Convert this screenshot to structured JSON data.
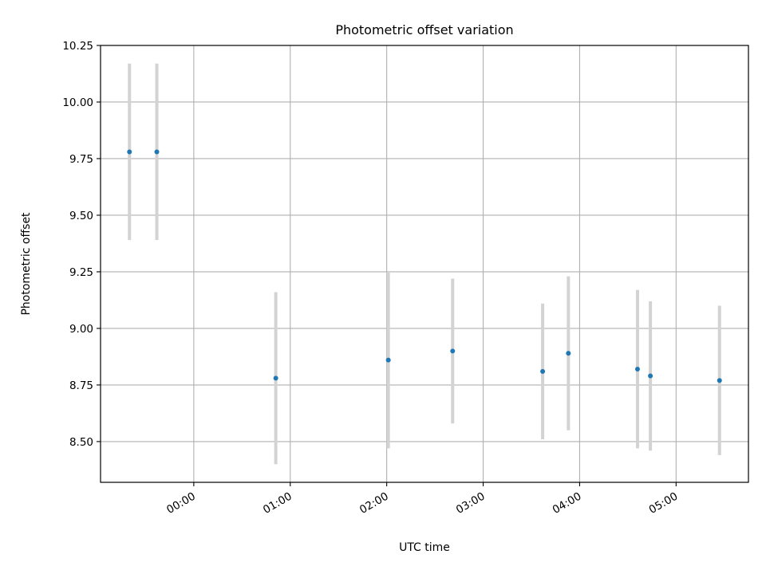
{
  "chart_data": {
    "type": "scatter",
    "title": "Photometric offset variation",
    "xlabel": "UTC time",
    "ylabel": "Photometric offset",
    "x_axis": "time (HH:MM, UTC)",
    "xlim": [
      "-00:58",
      "05:45"
    ],
    "ylim": [
      8.32,
      10.25
    ],
    "xticks": [
      "00:00",
      "01:00",
      "02:00",
      "03:00",
      "04:00",
      "05:00"
    ],
    "yticks": [
      8.5,
      8.75,
      9.0,
      9.25,
      9.5,
      9.75,
      10.0,
      10.25
    ],
    "grid": true,
    "point_color": "#1f77b4",
    "errorbar_color": "#d3d3d3",
    "points": [
      {
        "time": "-00:40",
        "y": 9.78,
        "yerr": 0.39
      },
      {
        "time": "-00:23",
        "y": 9.78,
        "yerr": 0.39
      },
      {
        "time": "00:51",
        "y": 8.78,
        "yerr": 0.38
      },
      {
        "time": "02:01",
        "y": 8.86,
        "yerr": 0.39
      },
      {
        "time": "02:41",
        "y": 8.9,
        "yerr": 0.32
      },
      {
        "time": "03:37",
        "y": 8.81,
        "yerr": 0.3
      },
      {
        "time": "03:53",
        "y": 8.89,
        "yerr": 0.34
      },
      {
        "time": "04:36",
        "y": 8.82,
        "yerr": 0.35
      },
      {
        "time": "04:44",
        "y": 8.79,
        "yerr": 0.33
      },
      {
        "time": "05:27",
        "y": 8.77,
        "yerr": 0.33
      }
    ]
  }
}
